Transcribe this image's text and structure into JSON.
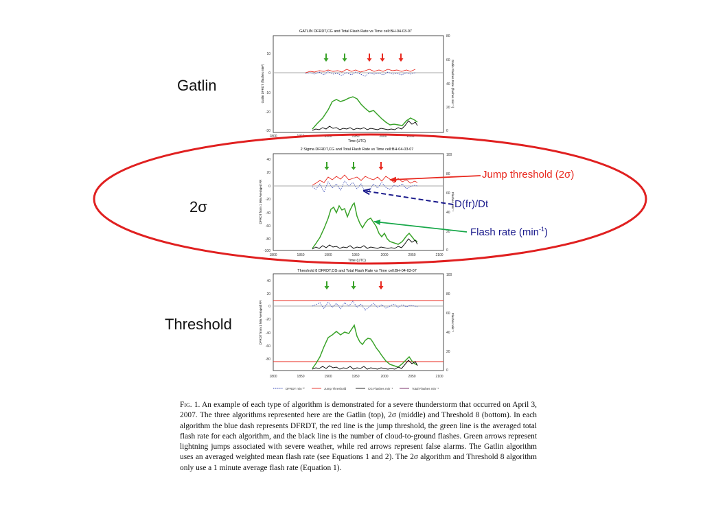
{
  "side_labels": {
    "gatlin": "Gatlin",
    "two_sigma": "2σ",
    "threshold": "Threshold"
  },
  "annotations": {
    "jump_threshold": "Jump threshold (2σ)",
    "dfr_dt": "D(fr)/Dt",
    "flash_rate_prefix": "Flash rate (min",
    "flash_rate_sup": "-1",
    "flash_rate_suffix": ")"
  },
  "panels": {
    "top": {
      "title": "GATLIN DFRDT,CG and Total Flash Rate  vs Time cell:BH-04-03-07",
      "ylabel_left": "Gatlin DFRDT (flashes min²)",
      "ylabel_right": "Gatlin Flashes Rate (flashes min⁻¹)",
      "yticks_left": [
        "10",
        "0",
        "-10",
        "-20",
        "-30"
      ],
      "yticks_right": [
        "80",
        "60",
        "40",
        "20",
        "0"
      ],
      "xticks": [
        "1800",
        "1850",
        "1900",
        "1950",
        "2000",
        "2050"
      ],
      "xlabel": "Time (UTC)"
    },
    "middle": {
      "title": "2 Sigma DFRDT,CG and Total Flash Rate  vs Time cell:BH-04-03-07",
      "ylabel_left": "DFRDT from 1 Min Averaged FR",
      "ylabel_right": "Flashes Min⁻¹",
      "yticks_left": [
        "40",
        "20",
        "0",
        "-20",
        "-40",
        "-60",
        "-80",
        "-100"
      ],
      "yticks_right": [
        "100",
        "80",
        "60",
        "40",
        "20",
        "0"
      ],
      "xticks": [
        "1800",
        "1850",
        "1900",
        "1950",
        "2000",
        "2050",
        "2100"
      ],
      "xlabel": "Time (UTC)"
    },
    "bottom": {
      "title": "Threshold 8 DFRDT,CG and Total Flash Rate  vs Time cell:BH-04-03-07",
      "ylabel_left": "DFRDT from 1 Min Averaged FR",
      "ylabel_right": "Flashes Min⁻¹",
      "yticks_left": [
        "40",
        "20",
        "0",
        "-20",
        "-40",
        "-60",
        "-80"
      ],
      "yticks_right": [
        "100",
        "80",
        "60",
        "40",
        "20",
        "0"
      ],
      "xticks": [
        "1800",
        "1850",
        "1900",
        "1950",
        "2000",
        "2050",
        "2100"
      ],
      "legend": [
        "DFRDT min⁻²",
        "Jump Threshold",
        "CG Flashes min⁻¹",
        "Total Flashes min⁻¹"
      ]
    }
  },
  "caption": {
    "fig_label": "Fig. 1.",
    "text": "An example of each type of algorithm is demonstrated for a severe thunderstorm that occurred on April 3, 2007. The three algorithms represented here are the Gatlin (top), 2σ (middle) and Threshold 8 (bottom). In each algorithm the blue dash represents DFRDT, the red line is the jump threshold, the green line is the averaged total flash rate for each algorithm, and the black line is the number of cloud-to-ground flashes. Green arrows represent lightning jumps associated with severe weather, while red arrows represent false alarms. The Gatlin algorithm uses an averaged weighted mean flash rate (see Equations 1 and 2). The 2σ algorithm and Threshold 8 algorithm only use a 1 minute average flash rate (Equation 1)."
  },
  "colors": {
    "ellipse": "#e02020",
    "jump_threshold": "#e8281e",
    "dfrdt": "#2a3db0",
    "flash_rate": "#3aa32a",
    "cg": "#111111",
    "arrow_green": "#3aa32a",
    "arrow_red": "#e8281e",
    "ann_red": "#e8281e",
    "ann_blue": "#1a1a8c"
  }
}
